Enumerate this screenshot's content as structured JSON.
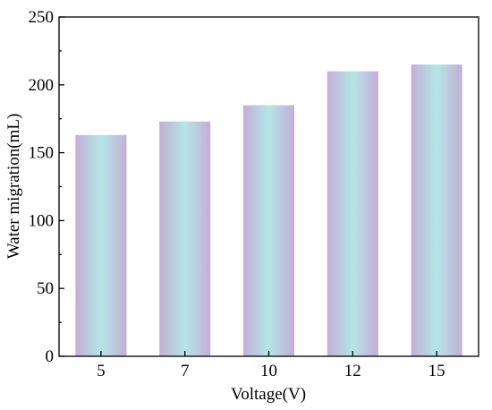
{
  "chart_data": {
    "type": "bar",
    "title": "",
    "xlabel": "Voltage(V)",
    "ylabel": "Water migration(mL)",
    "categories": [
      "5",
      "7",
      "10",
      "12",
      "15"
    ],
    "values": [
      163,
      173,
      185,
      210,
      215
    ],
    "ylim": [
      0,
      250
    ],
    "yticks": [
      0,
      50,
      100,
      150,
      200,
      250
    ],
    "grid": false,
    "legend": "none",
    "bar_gradient": {
      "edge": "#c4aed6",
      "center": "#b3e6e6"
    }
  }
}
